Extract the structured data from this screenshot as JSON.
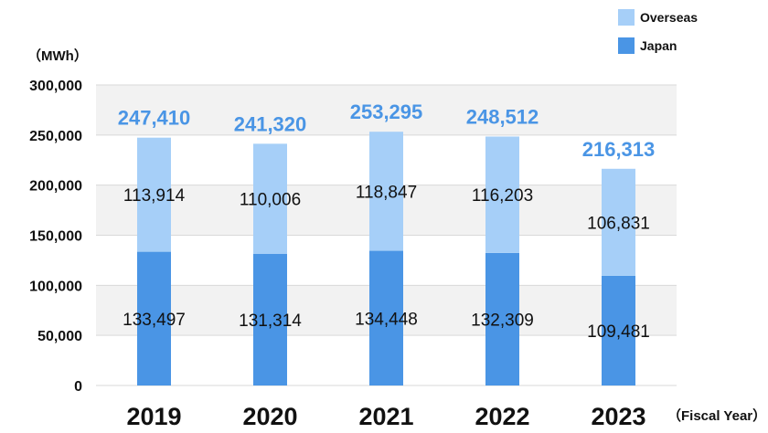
{
  "chart_data": {
    "type": "bar",
    "stacked": true,
    "categories": [
      "2019",
      "2020",
      "2021",
      "2022",
      "2023"
    ],
    "series": [
      {
        "name": "Japan",
        "color": "#4a95e5",
        "values": [
          133497,
          131314,
          134448,
          132309,
          109481
        ],
        "labels": [
          "133,497",
          "131,314",
          "134,448",
          "132,309",
          "109,481"
        ]
      },
      {
        "name": "Overseas",
        "color": "#a6cff8",
        "values": [
          113914,
          110006,
          118847,
          116203,
          106831
        ],
        "labels": [
          "113,914",
          "110,006",
          "118,847",
          "116,203",
          "106,831"
        ]
      }
    ],
    "totals": [
      247410,
      241320,
      253295,
      248512,
      216313
    ],
    "total_labels": [
      "247,410",
      "241,320",
      "253,295",
      "248,512",
      "216,313"
    ],
    "total_label_color": "#4a95e5",
    "ylim": [
      0,
      300000
    ],
    "yticks": [
      0,
      50000,
      100000,
      150000,
      200000,
      250000,
      300000
    ],
    "ytick_labels": [
      "0",
      "50,000",
      "100,000",
      "150,000",
      "200,000",
      "250,000",
      "300,000"
    ],
    "ylabel": "（MWh）",
    "xlabel": "（Fiscal Year）",
    "legend": {
      "position": "top-right",
      "order": [
        "Overseas",
        "Japan"
      ]
    },
    "grid": true,
    "plot_background_bands": [
      "#f2f2f2",
      "#ffffff"
    ]
  }
}
